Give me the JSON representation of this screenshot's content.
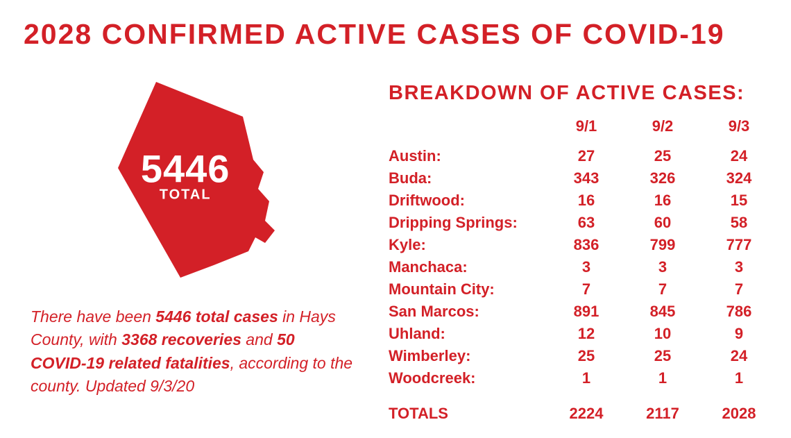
{
  "colors": {
    "accent": "#d32027",
    "background": "#ffffff",
    "shape_text": "#ffffff"
  },
  "headline": "2028 CONFIRMED ACTIVE CASES OF COVID-19",
  "shape": {
    "number": "5446",
    "sub": "TOTAL"
  },
  "summary": {
    "t1": "There have been ",
    "b1": "5446 total cases",
    "t2": " in Hays County, with ",
    "b2": "3368 recoveries",
    "t3": " and ",
    "b3": "50 COVID-19 related fatalities",
    "t4": ", according to the county. Updated 9/3/20"
  },
  "breakdown": {
    "title": "BREAKDOWN OF ACTIVE CASES:",
    "dates": [
      "9/1",
      "9/2",
      "9/3"
    ],
    "rows": [
      {
        "city": "Austin:",
        "v": [
          "27",
          "25",
          "24"
        ]
      },
      {
        "city": "Buda:",
        "v": [
          "343",
          "326",
          "324"
        ]
      },
      {
        "city": "Driftwood:",
        "v": [
          "16",
          "16",
          "15"
        ]
      },
      {
        "city": "Dripping Springs:",
        "v": [
          "63",
          "60",
          "58"
        ]
      },
      {
        "city": "Kyle:",
        "v": [
          "836",
          "799",
          "777"
        ]
      },
      {
        "city": "Manchaca:",
        "v": [
          "3",
          "3",
          "3"
        ]
      },
      {
        "city": "Mountain City:",
        "v": [
          "7",
          "7",
          "7"
        ]
      },
      {
        "city": "San Marcos:",
        "v": [
          "891",
          "845",
          "786"
        ]
      },
      {
        "city": "Uhland:",
        "v": [
          "12",
          "10",
          "9"
        ]
      },
      {
        "city": "Wimberley:",
        "v": [
          "25",
          "25",
          "24"
        ]
      },
      {
        "city": "Woodcreek:",
        "v": [
          "1",
          "1",
          "1"
        ]
      }
    ],
    "totals": {
      "label": "TOTALS",
      "v": [
        "2224",
        "2117",
        "2028"
      ]
    }
  }
}
